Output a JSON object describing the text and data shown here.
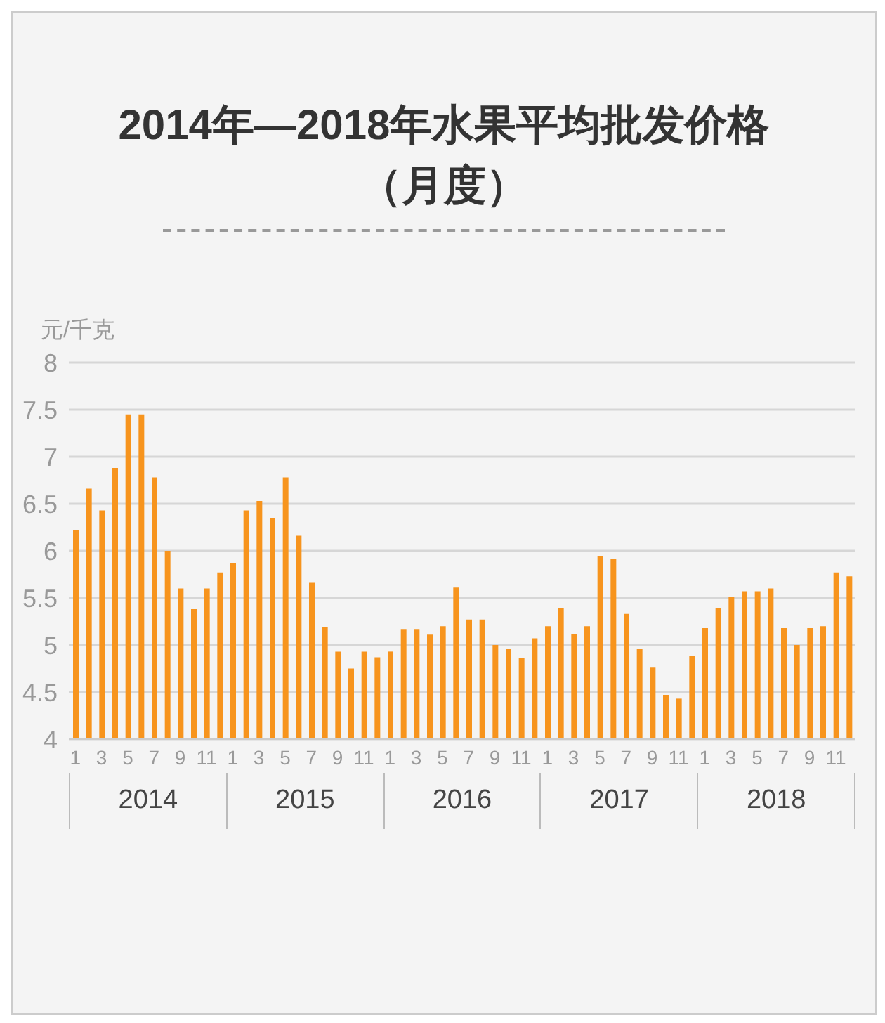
{
  "chart_data": {
    "type": "bar",
    "title": "2014年—2018年水果平均批发价格",
    "subtitle": "（月度）",
    "ylabel": "元/千克",
    "categories": [
      "1",
      null,
      "3",
      null,
      "5",
      null,
      "7",
      null,
      "9",
      null,
      "11",
      null,
      "1",
      null,
      "3",
      null,
      "5",
      null,
      "7",
      null,
      "9",
      null,
      "11",
      null,
      "1",
      null,
      "3",
      null,
      "5",
      null,
      "7",
      null,
      "9",
      null,
      "11",
      null,
      "1",
      null,
      "3",
      null,
      "5",
      null,
      "7",
      null,
      "9",
      null,
      "11",
      null,
      "1",
      null,
      "3",
      null,
      "5",
      null,
      "7",
      null,
      "9",
      null,
      "11",
      null
    ],
    "values": [
      6.22,
      6.66,
      6.43,
      6.88,
      7.45,
      7.45,
      6.78,
      6.0,
      5.6,
      5.38,
      5.6,
      5.77,
      5.87,
      6.43,
      6.53,
      6.35,
      6.78,
      6.16,
      5.66,
      5.19,
      4.93,
      4.75,
      4.93,
      4.87,
      4.93,
      5.17,
      5.17,
      5.11,
      5.2,
      5.61,
      5.27,
      5.27,
      5.0,
      4.96,
      4.86,
      5.07,
      5.2,
      5.39,
      5.12,
      5.2,
      5.94,
      5.91,
      5.33,
      4.96,
      4.76,
      4.47,
      4.43,
      4.88,
      5.18,
      5.39,
      5.51,
      5.57,
      5.57,
      5.6,
      5.18,
      5.0,
      5.18,
      5.2,
      5.77,
      5.73
    ],
    "color": "#f7941d",
    "ylim": [
      4,
      8
    ],
    "yticks": [
      4,
      4.5,
      5,
      5.5,
      6,
      6.5,
      7,
      7.5,
      8
    ],
    "grid": "y",
    "annotations": [
      "2014",
      "2015",
      "2016",
      "2017",
      "2018"
    ]
  }
}
